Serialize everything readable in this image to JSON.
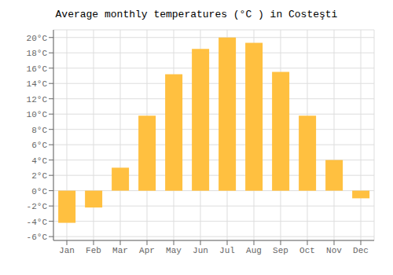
{
  "chart_data": {
    "type": "bar",
    "title": "Average monthly temperatures (°C ) in Costeşti",
    "categories": [
      "Jan",
      "Feb",
      "Mar",
      "Apr",
      "May",
      "Jun",
      "Jul",
      "Aug",
      "Sep",
      "Oct",
      "Nov",
      "Dec"
    ],
    "values": [
      -4.2,
      -2.2,
      3.0,
      9.8,
      15.2,
      18.5,
      20.0,
      19.3,
      15.5,
      9.8,
      4.0,
      -1.0
    ],
    "color": "#FFC040",
    "ylim": [
      -6.5,
      21
    ],
    "yticks": [
      {
        "value": -6,
        "label": "-6°C"
      },
      {
        "value": -4,
        "label": "-4°C"
      },
      {
        "value": -2,
        "label": "-2°C"
      },
      {
        "value": 0,
        "label": "0°C"
      },
      {
        "value": 2,
        "label": "2°C"
      },
      {
        "value": 4,
        "label": "4°C"
      },
      {
        "value": 6,
        "label": "6°C"
      },
      {
        "value": 8,
        "label": "8°C"
      },
      {
        "value": 10,
        "label": "10°C"
      },
      {
        "value": 12,
        "label": "12°C"
      },
      {
        "value": 14,
        "label": "14°C"
      },
      {
        "value": 16,
        "label": "16°C"
      },
      {
        "value": 18,
        "label": "18°C"
      },
      {
        "value": 20,
        "label": "20°C"
      }
    ],
    "grid": true
  }
}
